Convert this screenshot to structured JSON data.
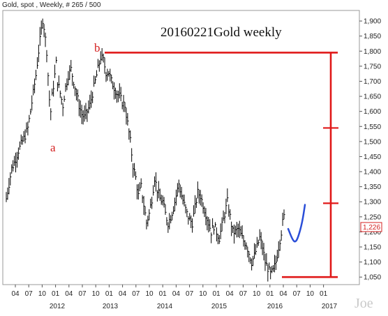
{
  "header": {
    "text": "Gold, spot , Weekly, # 265 / 500"
  },
  "chart_data": {
    "type": "candlestick",
    "title": "20160221Gold weekly",
    "y_ticks": [
      1050,
      1100,
      1150,
      1200,
      1250,
      1300,
      1350,
      1400,
      1450,
      1500,
      1550,
      1600,
      1650,
      1700,
      1750,
      1800,
      1850,
      1900
    ],
    "y_tick_labels": [
      "1,050",
      "1,100",
      "1,150",
      "1,200",
      "1,250",
      "1,300",
      "1,350",
      "1,400",
      "1,450",
      "1,500",
      "1,550",
      "1,600",
      "1,650",
      "1,700",
      "1,750",
      "1,800",
      "1,850",
      "1,900"
    ],
    "ylim": [
      1025,
      1935
    ],
    "x_tick_labels": [
      "04",
      "07",
      "10",
      "01",
      "04",
      "07",
      "10",
      "01",
      "04",
      "07",
      "10",
      "01",
      "04",
      "07",
      "10",
      "01",
      "04",
      "07",
      "10",
      "01",
      "04",
      "07",
      "10",
      "01"
    ],
    "x_year_labels": [
      "2012",
      "2013",
      "2014",
      "2015",
      "2016",
      "2017"
    ],
    "last_price": "1,226",
    "wave_labels": [
      {
        "text": "a",
        "value": 1500
      },
      {
        "text": "b",
        "value": 1820
      }
    ],
    "levels": [
      1795,
      1545,
      1295,
      1050
    ],
    "price_path": [
      [
        0,
        1310
      ],
      [
        2,
        1360
      ],
      [
        4,
        1410
      ],
      [
        6,
        1430
      ],
      [
        9,
        1470
      ],
      [
        12,
        1500
      ],
      [
        14,
        1520
      ],
      [
        16,
        1545
      ],
      [
        18,
        1600
      ],
      [
        20,
        1660
      ],
      [
        22,
        1720
      ],
      [
        24,
        1800
      ],
      [
        26,
        1870
      ],
      [
        27,
        1905
      ],
      [
        28,
        1880
      ],
      [
        30,
        1800
      ],
      [
        31,
        1720
      ],
      [
        32,
        1640
      ],
      [
        33,
        1600
      ],
      [
        34,
        1650
      ],
      [
        36,
        1720
      ],
      [
        37,
        1760
      ],
      [
        38,
        1700
      ],
      [
        40,
        1660
      ],
      [
        42,
        1620
      ],
      [
        44,
        1680
      ],
      [
        46,
        1720
      ],
      [
        48,
        1740
      ],
      [
        50,
        1700
      ],
      [
        52,
        1660
      ],
      [
        54,
        1620
      ],
      [
        56,
        1590
      ],
      [
        58,
        1580
      ],
      [
        60,
        1600
      ],
      [
        62,
        1620
      ],
      [
        64,
        1660
      ],
      [
        66,
        1700
      ],
      [
        68,
        1740
      ],
      [
        70,
        1780
      ],
      [
        72,
        1770
      ],
      [
        74,
        1730
      ],
      [
        76,
        1730
      ],
      [
        78,
        1700
      ],
      [
        80,
        1680
      ],
      [
        82,
        1660
      ],
      [
        84,
        1650
      ],
      [
        86,
        1630
      ],
      [
        88,
        1620
      ],
      [
        90,
        1560
      ],
      [
        92,
        1500
      ],
      [
        94,
        1420
      ],
      [
        96,
        1380
      ],
      [
        98,
        1320
      ],
      [
        100,
        1350
      ],
      [
        102,
        1290
      ],
      [
        104,
        1230
      ],
      [
        106,
        1260
      ],
      [
        108,
        1310
      ],
      [
        110,
        1380
      ],
      [
        112,
        1340
      ],
      [
        114,
        1310
      ],
      [
        116,
        1300
      ],
      [
        118,
        1260
      ],
      [
        120,
        1230
      ],
      [
        122,
        1250
      ],
      [
        124,
        1280
      ],
      [
        126,
        1320
      ],
      [
        128,
        1360
      ],
      [
        130,
        1320
      ],
      [
        132,
        1290
      ],
      [
        134,
        1260
      ],
      [
        136,
        1240
      ],
      [
        138,
        1230
      ],
      [
        140,
        1280
      ],
      [
        142,
        1330
      ],
      [
        144,
        1320
      ],
      [
        146,
        1290
      ],
      [
        148,
        1260
      ],
      [
        150,
        1230
      ],
      [
        152,
        1200
      ],
      [
        154,
        1220
      ],
      [
        156,
        1200
      ],
      [
        158,
        1180
      ],
      [
        160,
        1220
      ],
      [
        162,
        1260
      ],
      [
        164,
        1300
      ],
      [
        166,
        1250
      ],
      [
        168,
        1200
      ],
      [
        170,
        1200
      ],
      [
        172,
        1210
      ],
      [
        174,
        1190
      ],
      [
        176,
        1170
      ],
      [
        178,
        1160
      ],
      [
        180,
        1130
      ],
      [
        182,
        1100
      ],
      [
        184,
        1120
      ],
      [
        186,
        1150
      ],
      [
        188,
        1180
      ],
      [
        190,
        1150
      ],
      [
        192,
        1100
      ],
      [
        194,
        1080
      ],
      [
        196,
        1060
      ],
      [
        198,
        1070
      ],
      [
        200,
        1100
      ],
      [
        202,
        1150
      ],
      [
        204,
        1200
      ],
      [
        205,
        1230
      ],
      [
        206,
        1250
      ]
    ],
    "projection": [
      [
        0,
        1210
      ],
      [
        6,
        1175
      ],
      [
        10,
        1165
      ],
      [
        14,
        1180
      ],
      [
        20,
        1230
      ],
      [
        24,
        1290
      ]
    ]
  }
}
